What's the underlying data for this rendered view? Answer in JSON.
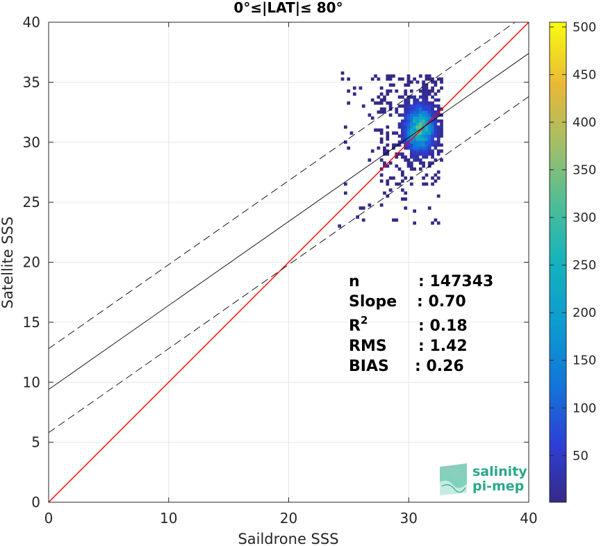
{
  "chart_data": {
    "type": "heatmap",
    "title": "0°≤|LAT|≤ 80°",
    "xlabel": "Saildrone SSS",
    "ylabel": "Satellite SSS",
    "xlim": [
      0,
      40
    ],
    "ylim": [
      0,
      40
    ],
    "x_ticks": [
      "0",
      "10",
      "20",
      "30",
      "40"
    ],
    "y_ticks": [
      "0",
      "5",
      "10",
      "15",
      "20",
      "25",
      "30",
      "35",
      "40"
    ],
    "grid": true,
    "colorbar": {
      "range": [
        1,
        505
      ],
      "ticks": [
        "50",
        "100",
        "150",
        "200",
        "250",
        "300",
        "350",
        "400",
        "450",
        "500"
      ],
      "colormap": "parula"
    },
    "density_cluster": {
      "x_range": [
        24.1,
        32.8
      ],
      "y_range": [
        22.9,
        35.7
      ],
      "peak": [
        30.8,
        31.0
      ]
    },
    "lines": [
      {
        "name": "1:1",
        "style": "solid",
        "color": "#ff0000",
        "points": [
          [
            0,
            0
          ],
          [
            40,
            40
          ]
        ]
      },
      {
        "name": "fit",
        "style": "solid",
        "color": "#000000",
        "points": [
          [
            0,
            9.4
          ],
          [
            40,
            37.4
          ]
        ]
      },
      {
        "name": "fit+",
        "style": "dashed",
        "color": "#000000",
        "points": [
          [
            0,
            12.8
          ],
          [
            40,
            40.8
          ]
        ]
      },
      {
        "name": "fit-",
        "style": "dashed",
        "color": "#000000",
        "points": [
          [
            0,
            5.8
          ],
          [
            40,
            33.8
          ]
        ]
      }
    ],
    "stats": [
      {
        "label": "n",
        "value": ": 147343"
      },
      {
        "label": "Slope",
        "value": ": 0.70"
      },
      {
        "label": "R",
        "sup": "2",
        "value": ": 0.18"
      },
      {
        "label": "RMS",
        "value": ": 1.42"
      },
      {
        "label": "BIAS",
        "value": ": 0.26"
      }
    ]
  },
  "logo": {
    "line1": "salinity",
    "line2": "pi-mep",
    "color": "#2aa889"
  }
}
